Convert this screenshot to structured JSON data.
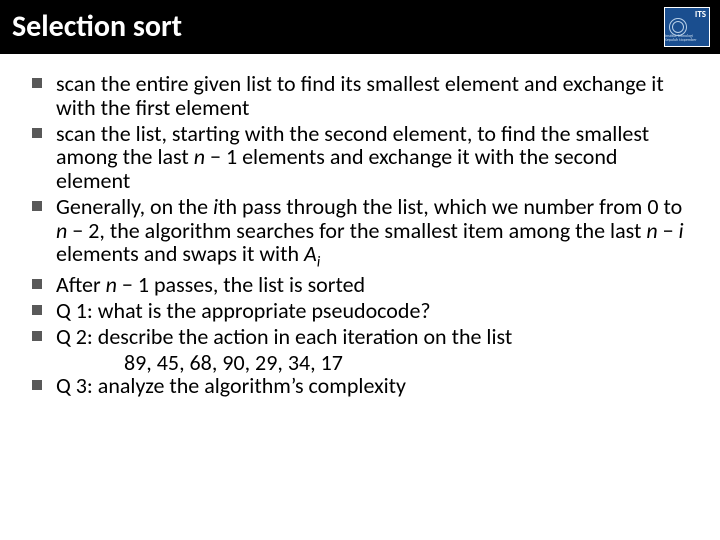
{
  "colors": {
    "titlebar_bg": "#000000",
    "title_text": "#ffffff",
    "body_bg": "#ffffff",
    "body_text": "#000000",
    "bullet_color": "#595959",
    "logo_bg": "#1a4e8f",
    "logo_text": "#ffffff"
  },
  "typography": {
    "title_fontsize": 30,
    "title_weight": 700,
    "body_fontsize": 22,
    "body_lineheight": 1.08,
    "font_family": "Calibri"
  },
  "logo": {
    "brand": "ITS",
    "subtext": "Institut Teknologi Sepuluh Nopember"
  },
  "title": "Selection sort",
  "bullets": [
    {
      "runs": [
        {
          "t": "scan the entire given list to find its smallest element and exchange it with the first element"
        }
      ]
    },
    {
      "runs": [
        {
          "t": "scan the list, starting with the second element, to find the smallest among the last "
        },
        {
          "t": "n",
          "style": "i"
        },
        {
          "t": " − 1 elements and exchange it with the second element"
        }
      ]
    },
    {
      "runs": [
        {
          "t": "Generally, on the "
        },
        {
          "t": "i",
          "style": "i"
        },
        {
          "t": "th pass through the list, which we number from 0 to "
        },
        {
          "t": "n",
          "style": "i"
        },
        {
          "t": " − 2, the algorithm searches for the smallest item among the last "
        },
        {
          "t": "n",
          "style": "i"
        },
        {
          "t": " − "
        },
        {
          "t": "i",
          "style": "i"
        },
        {
          "t": " elements and swaps it with "
        },
        {
          "t": "A",
          "style": "i"
        },
        {
          "t": "i",
          "style": "sub-i"
        }
      ]
    },
    {
      "runs": [
        {
          "t": "After "
        },
        {
          "t": "n",
          "style": "i"
        },
        {
          "t": " − 1 passes, the list is sorted"
        }
      ]
    },
    {
      "runs": [
        {
          "t": "Q 1: what is the appropriate pseudocode?"
        }
      ]
    },
    {
      "runs": [
        {
          "t": "Q 2: describe the action in each iteration on the list"
        }
      ],
      "extra_line": "89, 45, 68, 90, 29, 34, 17"
    },
    {
      "runs": [
        {
          "t": "Q 3: analyze the algorithm’s complexity"
        }
      ]
    }
  ]
}
